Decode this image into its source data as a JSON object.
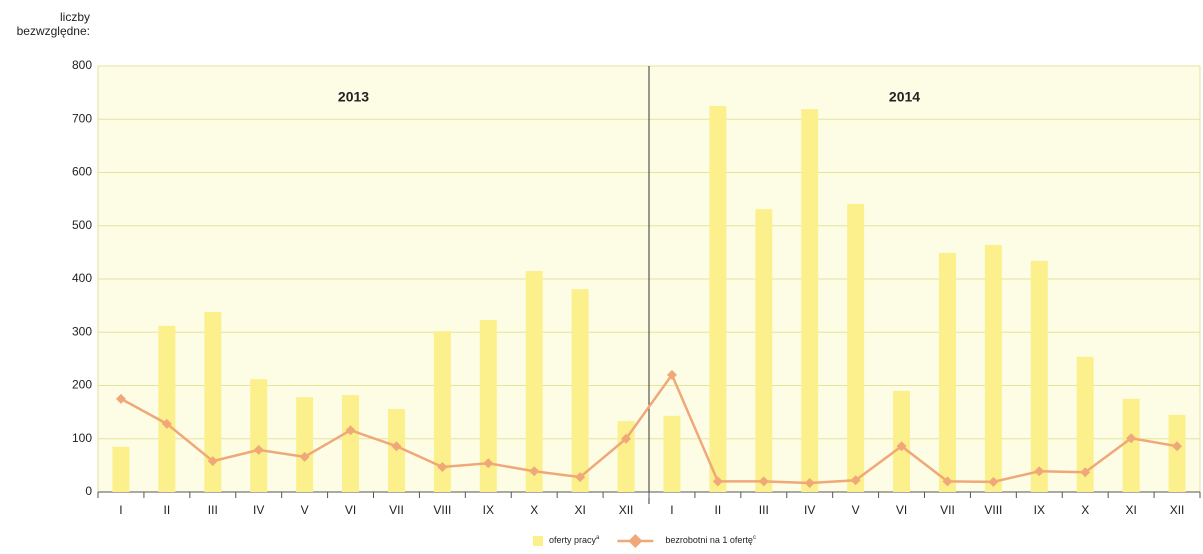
{
  "chart_data": {
    "type": "bar-line",
    "y_label": [
      "liczby",
      "bezwzględne:"
    ],
    "groups": [
      "2013",
      "2014"
    ],
    "categories": [
      "I",
      "II",
      "III",
      "IV",
      "V",
      "VI",
      "VII",
      "VIII",
      "IX",
      "X",
      "XI",
      "XII",
      "I",
      "II",
      "III",
      "IV",
      "V",
      "VI",
      "VII",
      "VIII",
      "IX",
      "X",
      "XI",
      "XII"
    ],
    "series": [
      {
        "name": "oferty pracy",
        "note": "a",
        "type": "bar",
        "color": "#fbf08c",
        "values": [
          85,
          312,
          338,
          212,
          178,
          182,
          156,
          302,
          323,
          415,
          381,
          133,
          143,
          725,
          531,
          719,
          541,
          190,
          449,
          464,
          434,
          254,
          175,
          145
        ]
      },
      {
        "name": "bezrobotni na 1 ofertę",
        "note": "c",
        "type": "line",
        "color": "#f0a878",
        "values": [
          175,
          128,
          58,
          79,
          66,
          116,
          86,
          47,
          54,
          39,
          28,
          100,
          220,
          20,
          20,
          17,
          22,
          86,
          20,
          19,
          39,
          37,
          101,
          86
        ]
      }
    ],
    "ylim": [
      0,
      800
    ],
    "yticks": [
      0,
      100,
      200,
      300,
      400,
      500,
      600,
      700,
      800
    ],
    "grid": true
  }
}
